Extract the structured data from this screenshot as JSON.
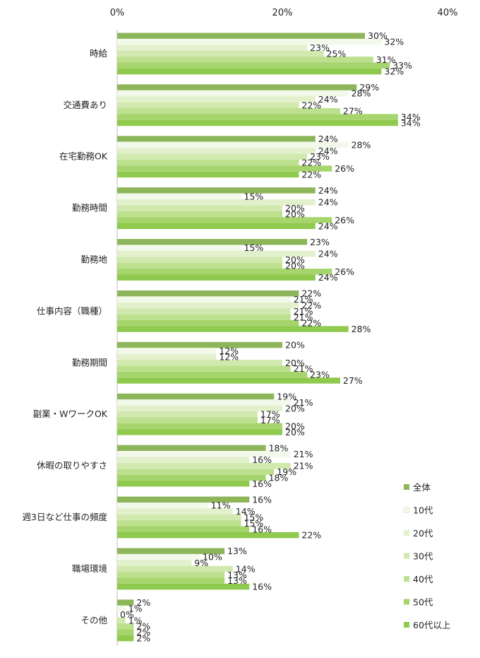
{
  "chart_data": {
    "type": "bar",
    "orientation": "horizontal",
    "title": "",
    "xlabel": "",
    "ylabel": "",
    "xlim": [
      0,
      40
    ],
    "xticks": [
      0,
      20,
      40
    ],
    "tick_suffix": "%",
    "value_suffix": "%",
    "grid": false,
    "legend_position": "right-bottom",
    "categories": [
      "時給",
      "交通費あり",
      "在宅勤務OK",
      "勤務時間",
      "勤務地",
      "仕事内容（職種）",
      "勤務期間",
      "副業・WワークOK",
      "休暇の取りやすさ",
      "週3日など仕事の頻度",
      "職場環境",
      "その他"
    ],
    "series": [
      {
        "name": "全体",
        "color": "#8db55a",
        "values": [
          30,
          29,
          24,
          24,
          23,
          22,
          20,
          19,
          18,
          16,
          13,
          2
        ]
      },
      {
        "name": "10代",
        "color": "#f3f9ea",
        "values": [
          32,
          28,
          28,
          15,
          15,
          21,
          12,
          21,
          21,
          11,
          10,
          1
        ]
      },
      {
        "name": "20代",
        "color": "#e2f1cc",
        "values": [
          23,
          24,
          24,
          24,
          24,
          22,
          12,
          20,
          16,
          14,
          9,
          0
        ]
      },
      {
        "name": "30代",
        "color": "#d1e9af",
        "values": [
          25,
          22,
          23,
          20,
          20,
          21,
          20,
          17,
          21,
          15,
          14,
          1
        ]
      },
      {
        "name": "40代",
        "color": "#bde08f",
        "values": [
          31,
          27,
          22,
          20,
          20,
          21,
          21,
          17,
          19,
          15,
          13,
          2
        ]
      },
      {
        "name": "50代",
        "color": "#a6d46d",
        "values": [
          33,
          34,
          26,
          26,
          26,
          22,
          23,
          20,
          18,
          16,
          13,
          2
        ]
      },
      {
        "name": "60代以上",
        "color": "#8fca4e",
        "values": [
          32,
          34,
          22,
          24,
          24,
          28,
          27,
          20,
          16,
          22,
          16,
          2
        ]
      }
    ]
  }
}
